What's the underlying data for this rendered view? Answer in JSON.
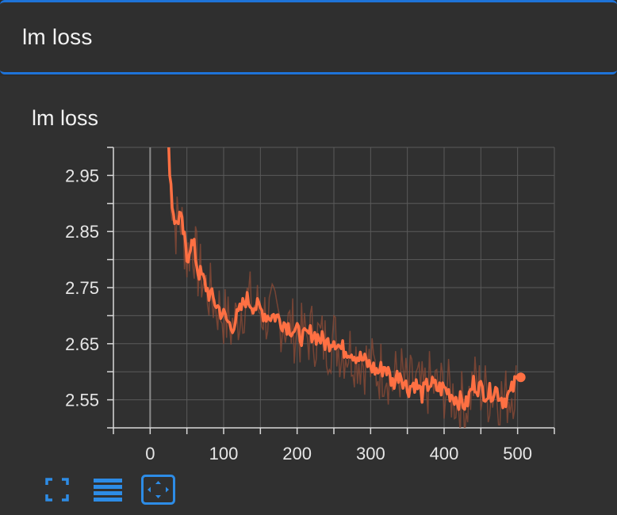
{
  "header": {
    "title": "lm loss"
  },
  "card": {
    "title": "lm loss"
  },
  "colors": {
    "accent": "#1e73d8",
    "series": "#ff7043",
    "series_raw": "#8a4a36",
    "grid": "#5a5a5a",
    "axis": "#d8d8d8",
    "button": "#2d8ce6"
  },
  "toolbar": {
    "buttons": [
      {
        "name": "fullscreen-button",
        "icon": "fullscreen-icon"
      },
      {
        "name": "toggle-log-scale-button",
        "icon": "lines-icon"
      },
      {
        "name": "fit-domain-button",
        "icon": "fit-to-domain-icon"
      }
    ]
  },
  "chart_data": {
    "type": "line",
    "title": "lm loss",
    "xlim": [
      -50,
      550
    ],
    "ylim": [
      2.5,
      3.0
    ],
    "x_ticks": [
      0,
      100,
      200,
      300,
      400,
      500
    ],
    "y_ticks": [
      2.55,
      2.65,
      2.75,
      2.85,
      2.95
    ],
    "x_tick_labels": [
      "0",
      "100",
      "200",
      "300",
      "400",
      "500"
    ],
    "y_tick_labels": [
      "2.55",
      "2.65",
      "2.75",
      "2.85",
      "2.95"
    ],
    "grid": true,
    "series": [
      {
        "x": [
          25,
          30,
          35,
          40,
          45,
          50,
          55,
          60,
          65,
          70,
          80,
          90,
          100,
          110,
          120,
          130,
          140,
          150,
          160,
          170,
          180,
          190,
          200,
          210,
          220,
          230,
          240,
          250,
          260,
          270,
          280,
          290,
          300,
          310,
          320,
          330,
          340,
          350,
          360,
          370,
          380,
          390,
          400,
          410,
          420,
          430,
          440,
          450,
          460,
          470,
          480,
          490,
          500
        ],
        "y": [
          3.0,
          2.9,
          2.86,
          2.88,
          2.85,
          2.8,
          2.83,
          2.82,
          2.78,
          2.77,
          2.74,
          2.72,
          2.7,
          2.68,
          2.7,
          2.73,
          2.72,
          2.71,
          2.7,
          2.7,
          2.69,
          2.68,
          2.67,
          2.66,
          2.67,
          2.66,
          2.65,
          2.66,
          2.64,
          2.64,
          2.63,
          2.62,
          2.61,
          2.6,
          2.61,
          2.58,
          2.6,
          2.57,
          2.58,
          2.56,
          2.58,
          2.57,
          2.57,
          2.56,
          2.55,
          2.54,
          2.58,
          2.57,
          2.56,
          2.57,
          2.55,
          2.56,
          2.59
        ]
      }
    ]
  }
}
